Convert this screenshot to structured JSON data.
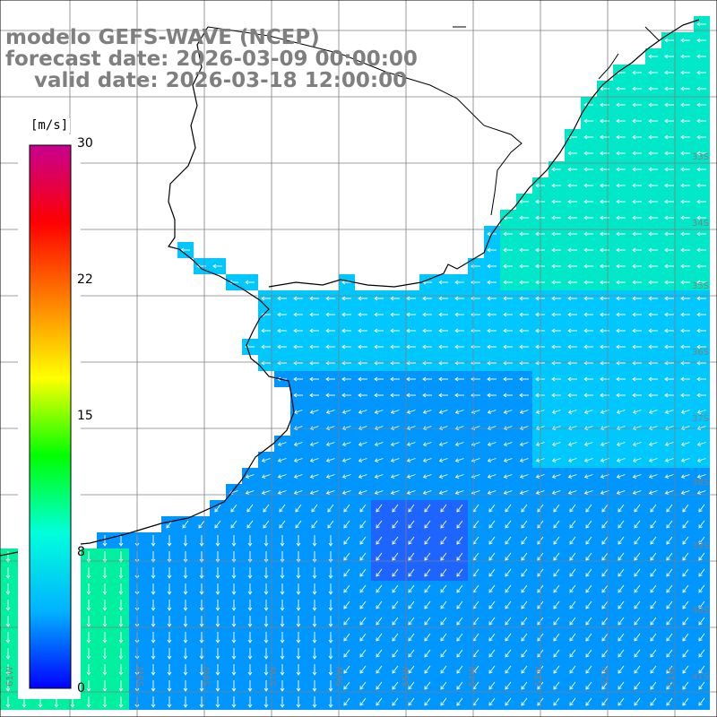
{
  "header": {
    "line1": "modelo GEFS-WAVE (NCEP)",
    "line2": "forecast date: 2026-03-09 00:00:00",
    "line3": "    valid date: 2026-03-18 12:00:00"
  },
  "colorbar": {
    "unit": "[m/s]",
    "ticks": [
      "30",
      "22",
      "15",
      "8",
      "0"
    ],
    "min": 0,
    "max": 30,
    "gradient_colors": [
      "#0000ff",
      "#00b4ff",
      "#00ffdc",
      "#00ff00",
      "#ffff00",
      "#ff8000",
      "#ff0000",
      "#c80090"
    ]
  },
  "map": {
    "lat_labels": [
      "33S",
      "34S",
      "35S",
      "36S",
      "37S",
      "38S",
      "39S",
      "40S",
      "41S"
    ],
    "lon_labels": [
      "61W",
      "60W",
      "59W",
      "58W",
      "57W",
      "56W",
      "55W",
      "54W",
      "53W",
      "52W",
      "51W"
    ],
    "land_color": "#ffffff",
    "grid_color": "#7f7f7f",
    "coast_color": "#000000",
    "arrow_color": "#ffffff",
    "field_colors": {
      "near_shelf": "#00c8ff",
      "offshore": "#0096ff",
      "deep_low": "#1e64ff",
      "southwest_high": "#00f0a0",
      "east_band": "#00e8c8"
    }
  }
}
